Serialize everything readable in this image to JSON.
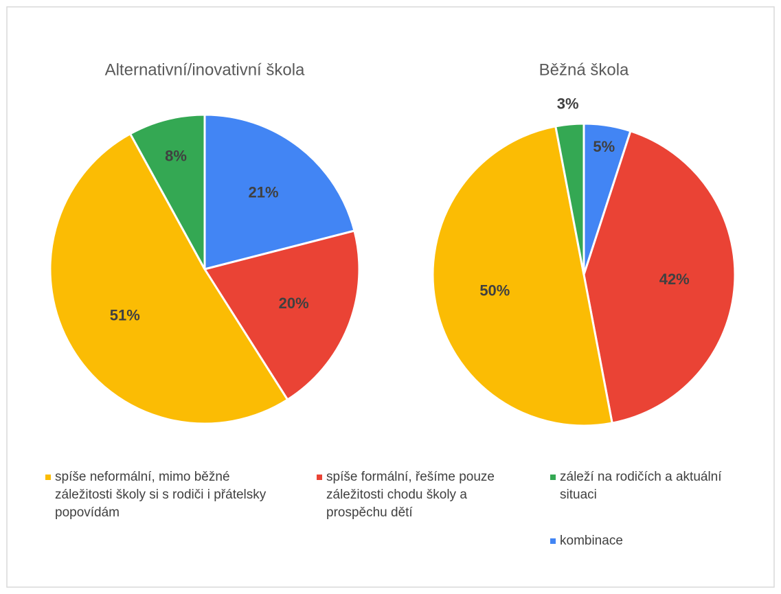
{
  "chart_data": [
    {
      "type": "pie",
      "title": "Alternativní/inovativní škola",
      "values": [
        21,
        20,
        51,
        8
      ],
      "value_labels": [
        "21%",
        "20%",
        "51%",
        "8%"
      ]
    },
    {
      "type": "pie",
      "title": "Běžná škola",
      "values": [
        5,
        42,
        50,
        3
      ],
      "value_labels": [
        "5%",
        "42%",
        "50%",
        "3%"
      ]
    }
  ],
  "legend": {
    "items": [
      {
        "name": "kombinace",
        "color": "#4285f4"
      },
      {
        "name": "spíše formální, řešíme pouze záležitosti chodu školy a prospěchu dětí",
        "color": "#ea4335"
      },
      {
        "name": "spíše neformální, mimo běžné záležitosti školy si s rodiči i přátelsky popovídám",
        "color": "#fbbc04"
      },
      {
        "name": "záleží na rodičích a aktuální situaci",
        "color": "#34a853"
      }
    ]
  }
}
